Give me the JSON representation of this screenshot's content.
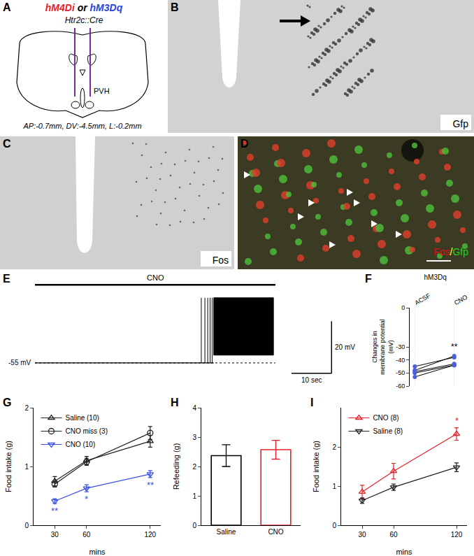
{
  "panel_labels": [
    "A",
    "B",
    "C",
    "D",
    "E",
    "F",
    "G",
    "H",
    "I"
  ],
  "schematic": {
    "virus": [
      {
        "text": "hM4Di",
        "color": "#e8202a"
      },
      {
        "text": " or ",
        "color": "#000000"
      },
      {
        "text": "hM3Dq",
        "color": "#2a44d8"
      }
    ],
    "line": "Htr2c::Cre",
    "region": "PVH",
    "coordinates": "AP:-0.7mm, DV:-4.5mm, L:-0.2mm"
  },
  "images": [
    {
      "label": [
        {
          "text": "Gfp",
          "color": "#000000"
        }
      ]
    },
    {
      "label": [
        {
          "text": "Fos",
          "color": "#000000"
        }
      ]
    },
    {
      "label": [
        {
          "text": "Fos",
          "color": "#e01010"
        },
        {
          "text": "/",
          "color": "#ffff40"
        },
        {
          "text": "Gfp",
          "color": "#20d020"
        }
      ]
    }
  ],
  "chart_data": [
    {
      "type": "trace",
      "xlim": [
        0,
        75
      ],
      "ylim": [
        -62,
        -22
      ],
      "tick_labels": false,
      "drug": {
        "label": "CNO",
        "x": [
          0,
          60
        ]
      },
      "baseline": {
        "value": -55,
        "label": "-55 mV"
      },
      "trace": {
        "x": [
          0,
          44.6
        ],
        "values": [
          -55,
          -55
        ]
      },
      "spikes": {
        "x": [
          41.5,
          42.4,
          43.1,
          43.7,
          44.2
        ],
        "values": [
          -30,
          -30,
          -30,
          -30,
          -30
        ]
      },
      "burst": {
        "x": [
          44.6,
          59.5
        ],
        "low": -52,
        "high": -30
      },
      "scale_bars": {
        "x": 10,
        "x_label": "10 sec",
        "y": 20,
        "y_label": "20 mV"
      }
    },
    {
      "type": "paired",
      "title": "hM3Dq",
      "categories": [
        "ACSF",
        "CNO"
      ],
      "values": [
        [
          -45,
          -38
        ],
        [
          -48,
          -37
        ],
        [
          -49,
          -43
        ],
        [
          -50,
          -44
        ],
        [
          -53,
          -44
        ]
      ],
      "color": "#4a5ee0",
      "ylabel": [
        "Changes in",
        "membrane potential",
        "(mV)"
      ],
      "ylim": [
        -60,
        0
      ],
      "yticks": [
        0,
        -30,
        -40,
        -50,
        -60
      ],
      "significance": "**"
    },
    {
      "type": "line",
      "x": [
        30,
        60,
        120
      ],
      "xlim": [
        10,
        130
      ],
      "xticks": [
        30,
        60,
        120
      ],
      "xlabel": "mins",
      "ylabel": "Food intake (g)",
      "ylim": [
        0,
        2
      ],
      "yticks": [
        0,
        1,
        2
      ],
      "legend": "top left",
      "series": [
        {
          "name": "Saline (10)",
          "color": "#222222",
          "marker": "triangle-up-open",
          "values": [
            0.75,
            1.1,
            1.43
          ],
          "error": [
            0.08,
            0.07,
            0.1
          ]
        },
        {
          "name": "CNO miss (3)",
          "color": "#222222",
          "marker": "circle-open",
          "values": [
            0.7,
            1.08,
            1.57
          ],
          "error": [
            0.05,
            0.06,
            0.11
          ]
        },
        {
          "name": "CNO (10)",
          "color": "#3b4fe0",
          "marker": "triangle-down-open",
          "values": [
            0.41,
            0.63,
            0.87
          ],
          "error": [
            0.04,
            0.06,
            0.06
          ],
          "significance": [
            "**",
            "*",
            "**"
          ]
        }
      ]
    },
    {
      "type": "bar",
      "categories": [
        "Saline",
        "CNO"
      ],
      "values": [
        2.37,
        2.57
      ],
      "error": [
        0.37,
        0.32
      ],
      "colors": [
        "#000000",
        "#e8202a"
      ],
      "ylabel": "Refeeding (g)",
      "ylim": [
        0,
        4
      ],
      "yticks": [
        0,
        1,
        2,
        3,
        4
      ]
    },
    {
      "type": "line",
      "x": [
        30,
        60,
        120
      ],
      "xlim": [
        10,
        130
      ],
      "xticks": [
        30,
        60,
        120
      ],
      "xlabel": "mins",
      "ylabel": "Food intake (g)",
      "ylim": [
        0,
        3
      ],
      "yticks": [
        0,
        1,
        2
      ],
      "legend": "top left",
      "series": [
        {
          "name": "CNO (8)",
          "color": "#e8202a",
          "marker": "triangle-up-open",
          "values": [
            0.85,
            1.38,
            2.33
          ],
          "error": [
            0.17,
            0.2,
            0.16
          ],
          "significance": [
            null,
            null,
            "*"
          ]
        },
        {
          "name": "Saline (8)",
          "color": "#222222",
          "marker": "triangle-down-open",
          "values": [
            0.63,
            0.97,
            1.48
          ],
          "error": [
            0.07,
            0.08,
            0.11
          ]
        }
      ]
    }
  ]
}
